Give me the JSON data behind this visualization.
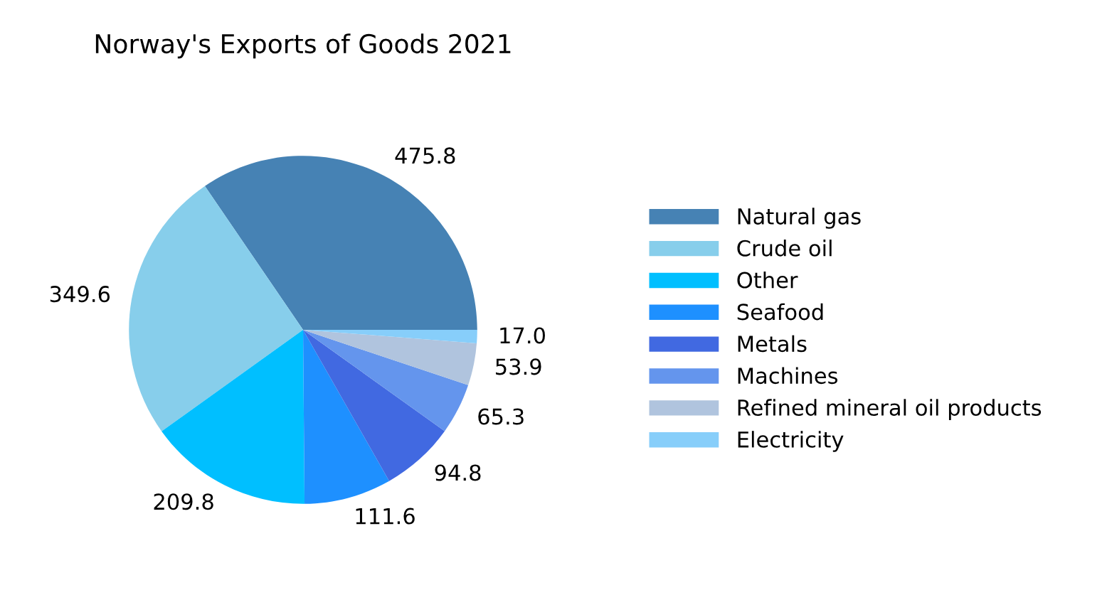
{
  "chart_data": {
    "type": "pie",
    "title": "Norway's Exports of Goods 2021",
    "categories": [
      "Natural gas",
      "Crude oil",
      "Other",
      "Seafood",
      "Metals",
      "Machines",
      "Refined mineral oil products",
      "Electricity"
    ],
    "values": [
      475.8,
      349.6,
      209.8,
      111.6,
      94.8,
      65.3,
      53.9,
      17.0
    ],
    "value_labels": [
      "475.8",
      "349.6",
      "209.8",
      "111.6",
      "94.8",
      "65.3",
      "53.9",
      "17.0"
    ],
    "colors": [
      "#4682b4",
      "#87ceeb",
      "#00bfff",
      "#1e90ff",
      "#4169e1",
      "#6495ed",
      "#b0c4de",
      "#87cefa"
    ],
    "legend": "right"
  }
}
